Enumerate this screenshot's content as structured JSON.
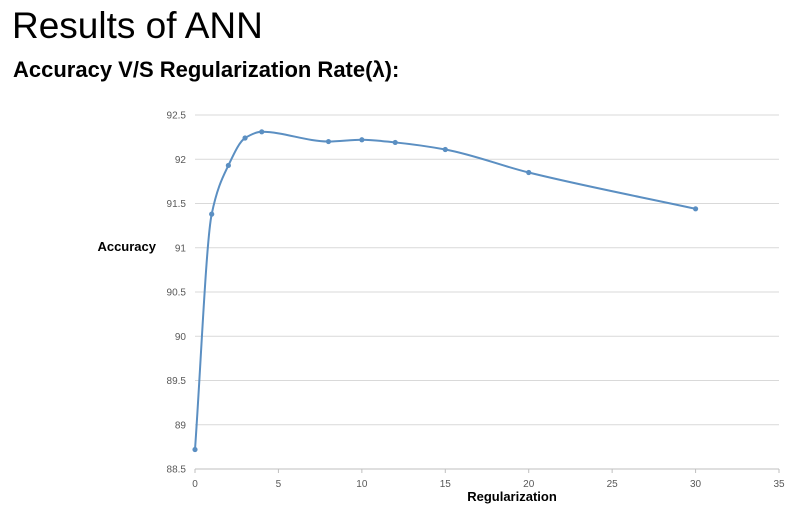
{
  "slide": {
    "title": "Results of ANN",
    "subtitle": "Accuracy V/S Regularization Rate(λ):"
  },
  "chart_data": {
    "type": "line",
    "xlabel": "Regularization",
    "ylabel": "Accuracy",
    "xlim": [
      0,
      35
    ],
    "ylim": [
      88.5,
      92.5
    ],
    "x_ticks": [
      0,
      5,
      10,
      15,
      20,
      25,
      30,
      35
    ],
    "y_ticks": [
      88.5,
      89,
      89.5,
      90,
      90.5,
      91,
      91.5,
      92,
      92.5
    ],
    "grid": "horizontal",
    "legend": "none",
    "line_style": "smooth",
    "series": [
      {
        "x": [
          0,
          1,
          2,
          3,
          4,
          8,
          10,
          12,
          15,
          20,
          30
        ],
        "y": [
          88.72,
          91.38,
          91.93,
          92.24,
          92.31,
          92.2,
          92.22,
          92.19,
          92.11,
          91.85,
          91.44
        ],
        "color": "#5b8fc2"
      }
    ]
  }
}
